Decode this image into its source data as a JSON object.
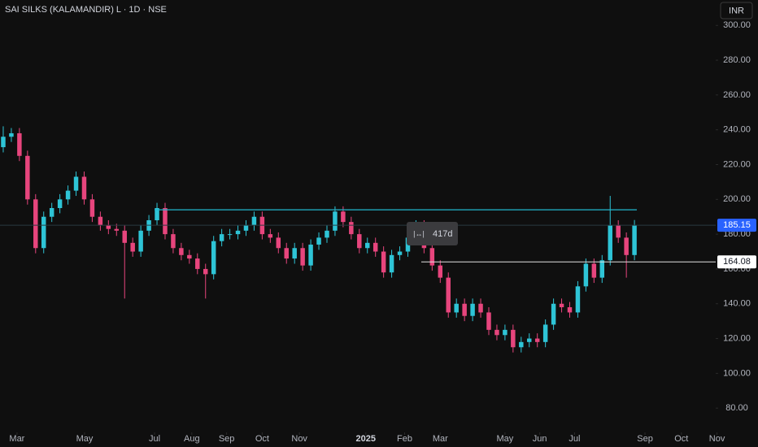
{
  "chart_data": {
    "type": "candlestick",
    "title": "SAI SILKS (KALAMANDIR) L · 1D · NSE",
    "currency": "INR",
    "measure_label": "417d",
    "resistance_level": 194,
    "level_line": {
      "value": 164.08,
      "label": "164.08"
    },
    "last_price": 185.15,
    "up_color": "#2ec4d6",
    "down_color": "#e7457d",
    "x": [
      0,
      1,
      2,
      3,
      4,
      5,
      6,
      7,
      8,
      9,
      10,
      11,
      12,
      13,
      14,
      15,
      16,
      17,
      18,
      19,
      20,
      21,
      22,
      23,
      24,
      25,
      26,
      27,
      28,
      29,
      30,
      31,
      32,
      33,
      34,
      35,
      36,
      37,
      38,
      39,
      40,
      41,
      42,
      43,
      44,
      45,
      46,
      47,
      48,
      49,
      50,
      51,
      52,
      53,
      54,
      55,
      56,
      57,
      58,
      59,
      60,
      61,
      62,
      63,
      64,
      65,
      66,
      67,
      68,
      69,
      70,
      71,
      72,
      73,
      74,
      75,
      76,
      77,
      78
    ],
    "open": [
      230,
      236,
      238,
      225,
      200,
      172,
      190,
      195,
      200,
      205,
      213,
      200,
      190,
      185,
      183,
      182,
      175,
      170,
      182,
      188,
      195,
      180,
      172,
      168,
      166,
      160,
      157,
      176,
      180,
      180,
      182,
      185,
      190,
      180,
      178,
      172,
      166,
      172,
      162,
      174,
      178,
      182,
      193,
      187,
      180,
      172,
      175,
      170,
      158,
      168,
      170,
      178,
      185,
      172,
      162,
      155,
      135,
      140,
      133,
      140,
      135,
      125,
      122,
      125,
      115,
      118,
      120,
      118,
      128,
      140,
      138,
      135,
      150,
      163,
      155,
      165,
      185,
      178,
      168
    ],
    "high": [
      242,
      241,
      241,
      228,
      203,
      193,
      198,
      203,
      208,
      216,
      216,
      203,
      193,
      188,
      186,
      185,
      178,
      185,
      191,
      198,
      198,
      183,
      175,
      171,
      169,
      163,
      179,
      183,
      183,
      185,
      188,
      193,
      193,
      183,
      181,
      175,
      175,
      175,
      177,
      181,
      185,
      196,
      196,
      190,
      183,
      178,
      178,
      173,
      171,
      173,
      181,
      188,
      188,
      175,
      165,
      158,
      143,
      143,
      143,
      143,
      138,
      128,
      128,
      128,
      121,
      123,
      123,
      131,
      143,
      143,
      141,
      153,
      166,
      166,
      168,
      202,
      188,
      181,
      188.15
    ],
    "low": [
      227,
      233,
      222,
      197,
      169,
      169,
      187,
      192,
      197,
      202,
      197,
      187,
      182,
      180,
      179,
      143,
      167,
      167,
      179,
      185,
      177,
      169,
      165,
      163,
      157,
      143,
      154,
      173,
      177,
      177,
      179,
      182,
      177,
      175,
      169,
      163,
      163,
      159,
      159,
      171,
      175,
      179,
      184,
      177,
      169,
      169,
      167,
      155,
      155,
      165,
      167,
      175,
      169,
      159,
      152,
      132,
      132,
      130,
      130,
      132,
      122,
      119,
      119,
      112,
      112,
      115,
      115,
      115,
      125,
      135,
      132,
      132,
      147,
      152,
      152,
      162,
      175,
      155,
      165
    ],
    "close": [
      236,
      238,
      225,
      200,
      172,
      190,
      195,
      200,
      205,
      213,
      200,
      190,
      185,
      183,
      182,
      175,
      170,
      182,
      188,
      195,
      180,
      172,
      168,
      166,
      160,
      157,
      176,
      180,
      180,
      182,
      185,
      190,
      180,
      178,
      172,
      166,
      172,
      162,
      174,
      178,
      182,
      193,
      187,
      180,
      172,
      175,
      170,
      158,
      168,
      170,
      178,
      185,
      172,
      162,
      155,
      135,
      140,
      133,
      140,
      135,
      125,
      122,
      125,
      115,
      118,
      120,
      118,
      128,
      140,
      138,
      135,
      150,
      163,
      155,
      165,
      185,
      178,
      168,
      185.15
    ],
    "xlim": [
      -0.4,
      88.04
    ],
    "xticks": [
      {
        "value": 1.7,
        "label": "Mar"
      },
      {
        "value": 10.05,
        "label": "May"
      },
      {
        "value": 18.7,
        "label": "Jul"
      },
      {
        "value": 23.3,
        "label": "Aug"
      },
      {
        "value": 27.6,
        "label": "Sep"
      },
      {
        "value": 32,
        "label": "Oct"
      },
      {
        "value": 36.6,
        "label": "Nov"
      },
      {
        "value": 44.8,
        "label": "2025"
      },
      {
        "value": 49.6,
        "label": "Feb"
      },
      {
        "value": 54,
        "label": "Mar"
      },
      {
        "value": 62,
        "label": "May"
      },
      {
        "value": 66.3,
        "label": "Jun"
      },
      {
        "value": 70.6,
        "label": "Jul"
      },
      {
        "value": 79.3,
        "label": "Sep"
      },
      {
        "value": 83.8,
        "label": "Oct"
      },
      {
        "value": 88.2,
        "label": "Nov"
      }
    ],
    "ylim": [
      67,
      314.6
    ],
    "yticks": [
      {
        "value": 80,
        "label": "80.00"
      },
      {
        "value": 100,
        "label": "100.00"
      },
      {
        "value": 120,
        "label": "120.00"
      },
      {
        "value": 140,
        "label": "140.00"
      },
      {
        "value": 160,
        "label": "160.00"
      },
      {
        "value": 180,
        "label": "180.00"
      },
      {
        "value": 200,
        "label": "200.00"
      },
      {
        "value": 220,
        "label": "220.00"
      },
      {
        "value": 240,
        "label": "240.00"
      },
      {
        "value": 260,
        "label": "260.00"
      },
      {
        "value": 280,
        "label": "280.00"
      },
      {
        "value": 300,
        "label": "300.00"
      }
    ]
  }
}
